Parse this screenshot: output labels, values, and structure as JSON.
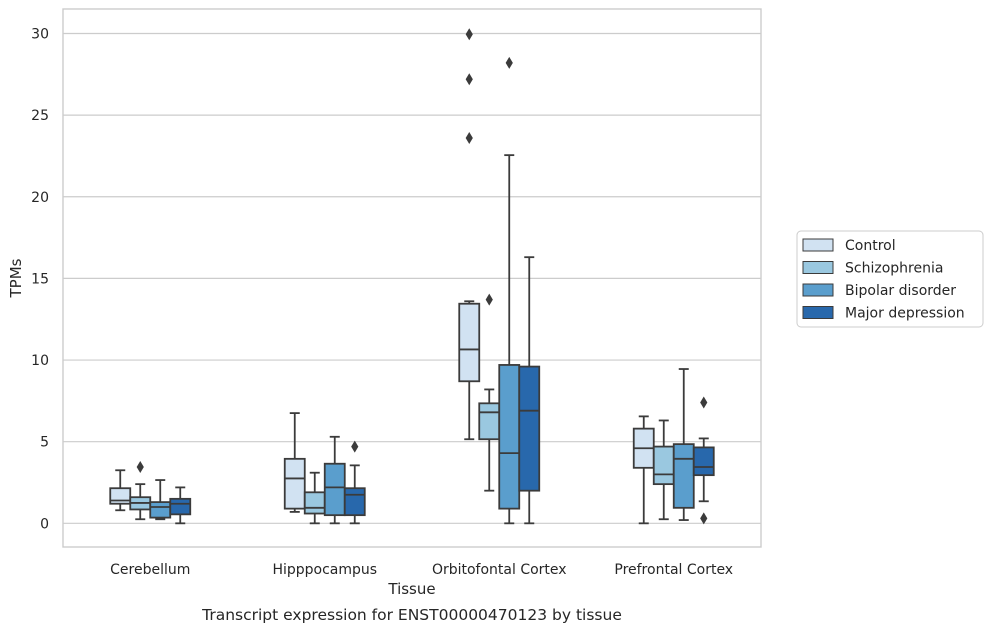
{
  "caption": "Transcript expression for ENST00000470123 by tissue",
  "chart_data": {
    "type": "boxplot",
    "xlabel": "Tissue",
    "ylabel": "TPMs",
    "ylim": [
      -1.45,
      31.5
    ],
    "yticks": [
      0,
      5,
      10,
      15,
      20,
      25,
      30
    ],
    "grid": "horizontal",
    "legend_position": "right",
    "categories": [
      "Cerebellum",
      "Hipppocampus",
      "Orbitofontal Cortex",
      "Prefrontal Cortex"
    ],
    "series": [
      {
        "name": "Control",
        "color": "#d1e2f2",
        "boxes": [
          {
            "whislo": 0.8,
            "q1": 1.2,
            "med": 1.4,
            "q3": 2.15,
            "whishi": 3.25,
            "fliers": []
          },
          {
            "whislo": 0.7,
            "q1": 0.9,
            "med": 2.75,
            "q3": 3.95,
            "whishi": 6.75,
            "fliers": []
          },
          {
            "whislo": 5.15,
            "q1": 8.7,
            "med": 10.65,
            "q3": 13.45,
            "whishi": 13.6,
            "fliers": [
              23.6,
              27.2,
              29.95
            ]
          },
          {
            "whislo": 0.0,
            "q1": 3.4,
            "med": 4.6,
            "q3": 5.8,
            "whishi": 6.55,
            "fliers": []
          }
        ]
      },
      {
        "name": "Schizophrenia",
        "color": "#9ac8e0",
        "boxes": [
          {
            "whislo": 0.25,
            "q1": 0.85,
            "med": 1.25,
            "q3": 1.6,
            "whishi": 2.4,
            "fliers": [
              3.45
            ]
          },
          {
            "whislo": 0.0,
            "q1": 0.6,
            "med": 0.95,
            "q3": 1.9,
            "whishi": 3.1,
            "fliers": []
          },
          {
            "whislo": 2.0,
            "q1": 5.15,
            "med": 6.8,
            "q3": 7.35,
            "whishi": 8.2,
            "fliers": [
              13.7
            ]
          },
          {
            "whislo": 0.25,
            "q1": 2.4,
            "med": 3.0,
            "q3": 4.7,
            "whishi": 6.3,
            "fliers": []
          }
        ]
      },
      {
        "name": "Bipolar disorder",
        "color": "#5a9ecd",
        "boxes": [
          {
            "whislo": 0.25,
            "q1": 0.35,
            "med": 1.0,
            "q3": 1.3,
            "whishi": 2.65,
            "fliers": []
          },
          {
            "whislo": 0.0,
            "q1": 0.5,
            "med": 2.2,
            "q3": 3.65,
            "whishi": 5.3,
            "fliers": []
          },
          {
            "whislo": 0.0,
            "q1": 0.9,
            "med": 4.3,
            "q3": 9.7,
            "whishi": 22.55,
            "fliers": [
              28.2
            ]
          },
          {
            "whislo": 0.2,
            "q1": 0.95,
            "med": 3.95,
            "q3": 4.85,
            "whishi": 9.45,
            "fliers": []
          }
        ]
      },
      {
        "name": "Major depression",
        "color": "#2868ac",
        "boxes": [
          {
            "whislo": 0.0,
            "q1": 0.55,
            "med": 1.2,
            "q3": 1.5,
            "whishi": 2.2,
            "fliers": []
          },
          {
            "whislo": 0.0,
            "q1": 0.5,
            "med": 1.75,
            "q3": 2.15,
            "whishi": 3.55,
            "fliers": [
              4.7
            ]
          },
          {
            "whislo": 0.0,
            "q1": 2.0,
            "med": 6.9,
            "q3": 9.6,
            "whishi": 16.3,
            "fliers": []
          },
          {
            "whislo": 1.35,
            "q1": 2.95,
            "med": 3.45,
            "q3": 4.65,
            "whishi": 5.2,
            "fliers": [
              0.3,
              7.4
            ]
          }
        ]
      }
    ]
  }
}
